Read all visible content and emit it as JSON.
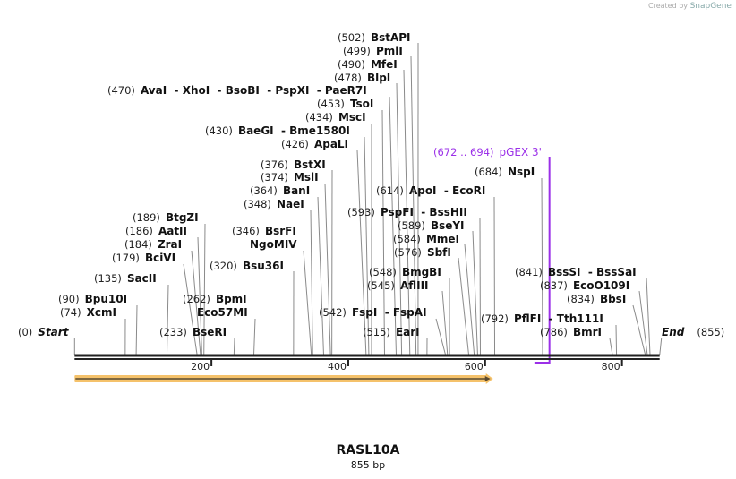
{
  "credit": {
    "prefix": "Created by",
    "brand": "SnapGene"
  },
  "sequence": {
    "name": "RASL10A",
    "length_label": "855 bp",
    "length": 855
  },
  "ticks": [
    200,
    400,
    600,
    800
  ],
  "ends": {
    "start": {
      "num": "(0)",
      "name": "Start",
      "pos": 0
    },
    "end": {
      "num": "(855)",
      "name": "End",
      "pos": 855
    }
  },
  "sites": [
    {
      "num": "(502)",
      "name": "BstAPI",
      "pos": 502
    },
    {
      "num": "(499)",
      "name": "PmlI",
      "pos": 499
    },
    {
      "num": "(490)",
      "name": "MfeI",
      "pos": 490
    },
    {
      "num": "(478)",
      "name": "BlpI",
      "pos": 478
    },
    {
      "num": "(470)",
      "name": "AvaI  - XhoI  - BsoBI  - PspXI  - PaeR7I",
      "pos": 470
    },
    {
      "num": "(453)",
      "name": "TsoI",
      "pos": 453
    },
    {
      "num": "(434)",
      "name": "MscI",
      "pos": 434
    },
    {
      "num": "(430)",
      "name": "BaeGI  - Bme1580I",
      "pos": 430
    },
    {
      "num": "(426)",
      "name": "ApaLI",
      "pos": 426
    },
    {
      "num": "(376)",
      "name": "BstXI",
      "pos": 376
    },
    {
      "num": "(374)",
      "name": "MslI",
      "pos": 374
    },
    {
      "num": "(364)",
      "name": "BanI",
      "pos": 364
    },
    {
      "num": "(348)",
      "name": "NaeI",
      "pos": 348
    },
    {
      "num": "(189)",
      "name": "BtgZI",
      "pos": 189
    },
    {
      "num": "(186)",
      "name": "AatII",
      "pos": 186
    },
    {
      "num": "(184)",
      "name": "ZraI",
      "pos": 184
    },
    {
      "num": "(179)",
      "name": "BciVI",
      "pos": 179
    },
    {
      "num": "(135)",
      "name": "SacII",
      "pos": 135
    },
    {
      "num": "(90)",
      "name": "Bpu10I",
      "pos": 90
    },
    {
      "num": "(74)",
      "name": "XcmI",
      "pos": 74
    },
    {
      "num": "(262)",
      "name": "BpmI",
      "name2": "Eco57MI",
      "pos": 262
    },
    {
      "num": "(233)",
      "name": "BseRI",
      "pos": 233
    },
    {
      "num": "(346)",
      "name": "BsrFI",
      "name2": "NgoMIV",
      "pos": 346
    },
    {
      "num": "(320)",
      "name": "Bsu36I",
      "pos": 320
    },
    {
      "num": "(542)",
      "name": "FspI  - FspAI",
      "pos": 542
    },
    {
      "num": "(515)",
      "name": "EarI",
      "pos": 515
    },
    {
      "num": "(548)",
      "name": "BmgBI",
      "pos": 548
    },
    {
      "num": "(545)",
      "name": "AflIII",
      "pos": 545
    },
    {
      "num": "(576)",
      "name": "SbfI",
      "pos": 576
    },
    {
      "num": "(584)",
      "name": "MmeI",
      "pos": 584
    },
    {
      "num": "(589)",
      "name": "BseYI",
      "pos": 589
    },
    {
      "num": "(593)",
      "name": "PspFI  - BssHII",
      "pos": 593
    },
    {
      "num": "(614)",
      "name": "ApoI  - EcoRI",
      "pos": 614
    },
    {
      "num": "(684)",
      "name": "NspI",
      "pos": 684
    },
    {
      "num": "(841)",
      "name": "BssSI  - BssSaI",
      "pos": 841
    },
    {
      "num": "(837)",
      "name": "EcoO109I",
      "pos": 837
    },
    {
      "num": "(834)",
      "name": "BbsI",
      "pos": 834
    },
    {
      "num": "(792)",
      "name": "PflFI  - Tth111I",
      "pos": 792
    },
    {
      "num": "(786)",
      "name": "BmrI",
      "pos": 786
    }
  ],
  "primer": {
    "num": "(672 .. 694)",
    "name": "pGEX 3'",
    "start": 672,
    "end": 694,
    "color": "#9b30e8"
  },
  "orf": {
    "start": 1,
    "end": 609,
    "color": "#f5c26b",
    "arrow_color": "#5a4a30"
  }
}
